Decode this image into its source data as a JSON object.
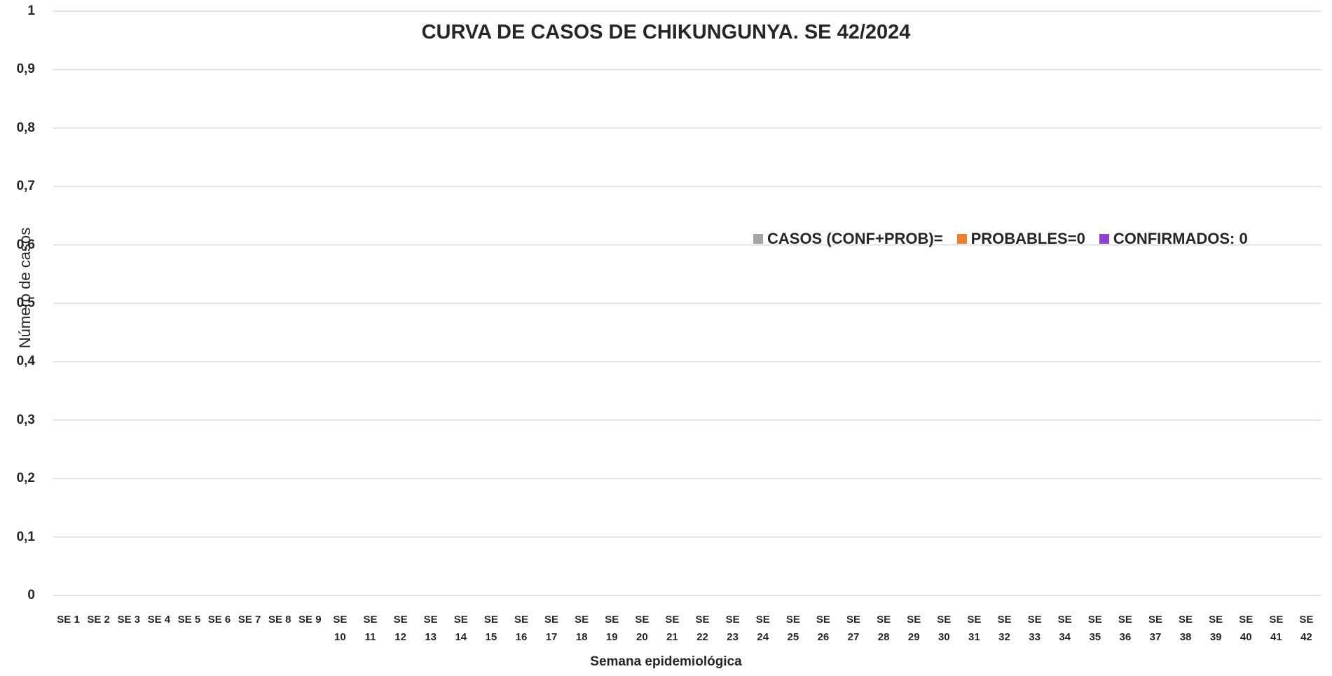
{
  "chart_data": {
    "type": "bar",
    "title": "CURVA DE CASOS DE CHIKUNGUNYA. SE 42/2024",
    "x_label": "Semana epidemiológica",
    "y_label": "Número de casos",
    "categories": [
      "SE 1",
      "SE 2",
      "SE 3",
      "SE 4",
      "SE 5",
      "SE 6",
      "SE 7",
      "SE 8",
      "SE 9",
      "SE 10",
      "SE 11",
      "SE 12",
      "SE 13",
      "SE 14",
      "SE 15",
      "SE 16",
      "SE 17",
      "SE 18",
      "SE 19",
      "SE 20",
      "SE 21",
      "SE 22",
      "SE 23",
      "SE 24",
      "SE 25",
      "SE 26",
      "SE 27",
      "SE 28",
      "SE 29",
      "SE 30",
      "SE 31",
      "SE 32",
      "SE 33",
      "SE 34",
      "SE 35",
      "SE 36",
      "SE 37",
      "SE 38",
      "SE 39",
      "SE 40",
      "SE 41",
      "SE 42"
    ],
    "series": [
      {
        "name": "CASOS (CONF+PROB)=",
        "color": "#a5a5a5",
        "values": [
          0,
          0,
          0,
          0,
          0,
          0,
          0,
          0,
          0,
          0,
          0,
          0,
          0,
          0,
          0,
          0,
          0,
          0,
          0,
          0,
          0,
          0,
          0,
          0,
          0,
          0,
          0,
          0,
          0,
          0,
          0,
          0,
          0,
          0,
          0,
          0,
          0,
          0,
          0,
          0,
          0,
          0
        ]
      },
      {
        "name": "PROBABLES=0",
        "color": "#ed7d31",
        "values": [
          0,
          0,
          0,
          0,
          0,
          0,
          0,
          0,
          0,
          0,
          0,
          0,
          0,
          0,
          0,
          0,
          0,
          0,
          0,
          0,
          0,
          0,
          0,
          0,
          0,
          0,
          0,
          0,
          0,
          0,
          0,
          0,
          0,
          0,
          0,
          0,
          0,
          0,
          0,
          0,
          0,
          0
        ]
      },
      {
        "name": "CONFIRMADOS: 0",
        "color": "#8e3fd4",
        "values": [
          0,
          0,
          0,
          0,
          0,
          0,
          0,
          0,
          0,
          0,
          0,
          0,
          0,
          0,
          0,
          0,
          0,
          0,
          0,
          0,
          0,
          0,
          0,
          0,
          0,
          0,
          0,
          0,
          0,
          0,
          0,
          0,
          0,
          0,
          0,
          0,
          0,
          0,
          0,
          0,
          0,
          0
        ]
      }
    ],
    "ylim": [
      0,
      1
    ],
    "yticks": [
      0,
      {
        "value": 0.1,
        "label": "0,1"
      },
      {
        "value": 0.2,
        "label": "0,2"
      },
      {
        "value": 0.3,
        "label": "0,3"
      },
      {
        "value": 0.4,
        "label": "0,4"
      },
      {
        "value": 0.5,
        "label": "0,5"
      },
      {
        "value": 0.6,
        "label": "0,6"
      },
      {
        "value": 0.7,
        "label": "0,7"
      },
      {
        "value": 0.8,
        "label": "0,8"
      },
      {
        "value": 0.9,
        "label": "0,9"
      },
      1
    ],
    "grid": true,
    "legend": "right"
  }
}
